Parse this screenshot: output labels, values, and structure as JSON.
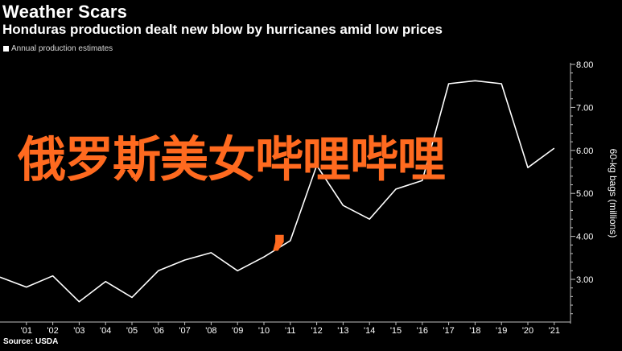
{
  "header": {
    "title": "Weather Scars",
    "subtitle": "Honduras production dealt new blow by hurricanes amid low prices"
  },
  "legend": {
    "label": "Annual production estimates"
  },
  "source": "Source: USDA",
  "overlay": {
    "text": "俄罗斯美女哔哩哔哩",
    "comma": ","
  },
  "colors": {
    "background": "#000000",
    "line": "#ffffff",
    "overlay": "#ff6a1f",
    "grid": "#3a3a3a"
  },
  "chart_data": {
    "type": "line",
    "title": "Weather Scars",
    "subtitle": "Honduras production dealt new blow by hurricanes amid low prices",
    "ylabel": "60-kg bags (millions)",
    "ylim": [
      2.0,
      8.0
    ],
    "y_ticks": [
      "3.00",
      "4.00",
      "5.00",
      "6.00",
      "7.00",
      "8.00"
    ],
    "x_ticks": [
      "'01",
      "'02",
      "'03",
      "'04",
      "'05",
      "'06",
      "'07",
      "'08",
      "'09",
      "'10",
      "'11",
      "'12",
      "'13",
      "'14",
      "'15",
      "'16",
      "'17",
      "'18",
      "'19",
      "'20",
      "'21"
    ],
    "series": [
      {
        "name": "Annual production estimates",
        "x": [
          2000,
          2001,
          2002,
          2003,
          2004,
          2005,
          2006,
          2007,
          2008,
          2009,
          2010,
          2011,
          2012,
          2013,
          2014,
          2015,
          2016,
          2017,
          2018,
          2019,
          2020,
          2021
        ],
        "values": [
          3.05,
          2.82,
          3.08,
          2.48,
          2.95,
          2.58,
          3.2,
          3.45,
          3.62,
          3.2,
          3.52,
          3.9,
          5.65,
          4.72,
          4.4,
          5.1,
          5.3,
          7.55,
          7.62,
          7.55,
          5.6,
          6.05
        ]
      }
    ],
    "grid": false,
    "legend_position": "top-left"
  }
}
